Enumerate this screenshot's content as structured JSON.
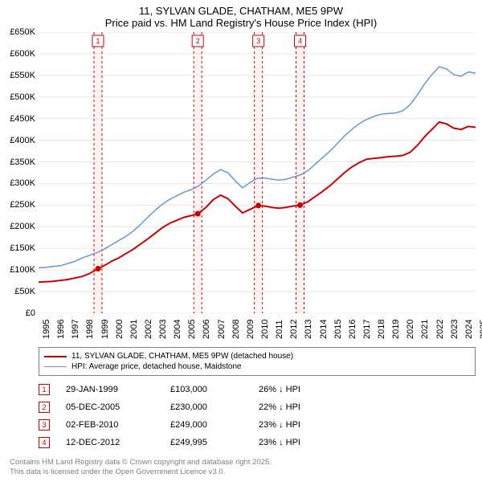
{
  "title": {
    "line1": "11, SYLVAN GLADE, CHATHAM, ME5 9PW",
    "line2": "Price paid vs. HM Land Registry's House Price Index (HPI)"
  },
  "chart": {
    "type": "line",
    "background_color": "#ffffff",
    "grid_color": "#e6e6e6",
    "x": {
      "min": 1995,
      "max": 2025,
      "ticks": [
        1995,
        1996,
        1997,
        1998,
        1999,
        2000,
        2001,
        2002,
        2003,
        2004,
        2005,
        2006,
        2007,
        2008,
        2009,
        2010,
        2011,
        2012,
        2013,
        2014,
        2015,
        2016,
        2017,
        2018,
        2019,
        2020,
        2021,
        2022,
        2023,
        2024,
        2025
      ]
    },
    "y": {
      "min": 0,
      "max": 650000,
      "ticks": [
        0,
        50000,
        100000,
        150000,
        200000,
        250000,
        300000,
        350000,
        400000,
        450000,
        500000,
        550000,
        600000,
        650000
      ],
      "tick_labels": [
        "£0",
        "£50K",
        "£100K",
        "£150K",
        "£200K",
        "£250K",
        "£300K",
        "£350K",
        "£400K",
        "£450K",
        "£500K",
        "£550K",
        "£600K",
        "£650K"
      ]
    },
    "series": [
      {
        "name": "price_paid",
        "color": "#cc0000",
        "line_width": 2,
        "points": [
          [
            1995.0,
            72000
          ],
          [
            1996.0,
            74000
          ],
          [
            1997.0,
            78000
          ],
          [
            1998.0,
            85000
          ],
          [
            1998.5,
            92000
          ],
          [
            1999.08,
            103000
          ],
          [
            1999.5,
            110000
          ],
          [
            2000.0,
            120000
          ],
          [
            2000.5,
            128000
          ],
          [
            2001.0,
            138000
          ],
          [
            2001.5,
            148000
          ],
          [
            2002.0,
            160000
          ],
          [
            2002.5,
            172000
          ],
          [
            2003.0,
            185000
          ],
          [
            2003.5,
            198000
          ],
          [
            2004.0,
            208000
          ],
          [
            2004.5,
            215000
          ],
          [
            2005.0,
            222000
          ],
          [
            2005.5,
            226000
          ],
          [
            2005.93,
            230000
          ],
          [
            2006.5,
            245000
          ],
          [
            2007.0,
            263000
          ],
          [
            2007.5,
            273000
          ],
          [
            2008.0,
            265000
          ],
          [
            2008.5,
            248000
          ],
          [
            2009.0,
            232000
          ],
          [
            2009.5,
            240000
          ],
          [
            2010.09,
            249000
          ],
          [
            2010.5,
            248000
          ],
          [
            2011.0,
            245000
          ],
          [
            2011.5,
            243000
          ],
          [
            2012.0,
            245000
          ],
          [
            2012.5,
            248000
          ],
          [
            2012.95,
            249995
          ],
          [
            2013.5,
            258000
          ],
          [
            2014.0,
            270000
          ],
          [
            2014.5,
            282000
          ],
          [
            2015.0,
            295000
          ],
          [
            2015.5,
            310000
          ],
          [
            2016.0,
            325000
          ],
          [
            2016.5,
            338000
          ],
          [
            2017.0,
            348000
          ],
          [
            2017.5,
            356000
          ],
          [
            2018.0,
            358000
          ],
          [
            2018.5,
            360000
          ],
          [
            2019.0,
            362000
          ],
          [
            2019.5,
            363000
          ],
          [
            2020.0,
            365000
          ],
          [
            2020.5,
            372000
          ],
          [
            2021.0,
            388000
          ],
          [
            2021.5,
            408000
          ],
          [
            2022.0,
            425000
          ],
          [
            2022.5,
            442000
          ],
          [
            2023.0,
            438000
          ],
          [
            2023.5,
            428000
          ],
          [
            2024.0,
            425000
          ],
          [
            2024.5,
            432000
          ],
          [
            2025.0,
            430000
          ]
        ]
      },
      {
        "name": "hpi",
        "color": "#6699cc",
        "line_width": 1.5,
        "points": [
          [
            1995.0,
            105000
          ],
          [
            1995.5,
            106000
          ],
          [
            1996.0,
            108000
          ],
          [
            1996.5,
            110000
          ],
          [
            1997.0,
            115000
          ],
          [
            1997.5,
            120000
          ],
          [
            1998.0,
            128000
          ],
          [
            1998.5,
            134000
          ],
          [
            1999.0,
            140000
          ],
          [
            1999.5,
            148000
          ],
          [
            2000.0,
            158000
          ],
          [
            2000.5,
            168000
          ],
          [
            2001.0,
            178000
          ],
          [
            2001.5,
            190000
          ],
          [
            2002.0,
            205000
          ],
          [
            2002.5,
            222000
          ],
          [
            2003.0,
            238000
          ],
          [
            2003.5,
            252000
          ],
          [
            2004.0,
            263000
          ],
          [
            2004.5,
            272000
          ],
          [
            2005.0,
            280000
          ],
          [
            2005.5,
            286000
          ],
          [
            2006.0,
            295000
          ],
          [
            2006.5,
            308000
          ],
          [
            2007.0,
            322000
          ],
          [
            2007.5,
            332000
          ],
          [
            2008.0,
            325000
          ],
          [
            2008.5,
            306000
          ],
          [
            2009.0,
            290000
          ],
          [
            2009.5,
            302000
          ],
          [
            2010.0,
            312000
          ],
          [
            2010.5,
            313000
          ],
          [
            2011.0,
            310000
          ],
          [
            2011.5,
            308000
          ],
          [
            2012.0,
            310000
          ],
          [
            2012.5,
            315000
          ],
          [
            2013.0,
            320000
          ],
          [
            2013.5,
            330000
          ],
          [
            2014.0,
            345000
          ],
          [
            2014.5,
            360000
          ],
          [
            2015.0,
            375000
          ],
          [
            2015.5,
            392000
          ],
          [
            2016.0,
            410000
          ],
          [
            2016.5,
            425000
          ],
          [
            2017.0,
            438000
          ],
          [
            2017.5,
            448000
          ],
          [
            2018.0,
            455000
          ],
          [
            2018.5,
            460000
          ],
          [
            2019.0,
            462000
          ],
          [
            2019.5,
            463000
          ],
          [
            2020.0,
            468000
          ],
          [
            2020.5,
            482000
          ],
          [
            2021.0,
            505000
          ],
          [
            2021.5,
            530000
          ],
          [
            2022.0,
            552000
          ],
          [
            2022.5,
            570000
          ],
          [
            2023.0,
            565000
          ],
          [
            2023.5,
            552000
          ],
          [
            2024.0,
            548000
          ],
          [
            2024.5,
            558000
          ],
          [
            2025.0,
            555000
          ]
        ]
      }
    ],
    "sale_markers": [
      {
        "n": "1",
        "year": 1999.08
      },
      {
        "n": "2",
        "year": 2005.93
      },
      {
        "n": "3",
        "year": 2010.09
      },
      {
        "n": "4",
        "year": 2012.95
      }
    ],
    "marker_band_color": "#fff3f3",
    "marker_border_color": "#cc0000",
    "marker_dash": "3,3"
  },
  "legend": {
    "items": [
      {
        "color": "#cc0000",
        "width": 2,
        "label": "11, SYLVAN GLADE, CHATHAM, ME5 9PW (detached house)"
      },
      {
        "color": "#6699cc",
        "width": 1.5,
        "label": "HPI: Average price, detached house, Maidstone"
      }
    ]
  },
  "sales": [
    {
      "n": "1",
      "date": "29-JAN-1999",
      "price": "£103,000",
      "pct": "26% ↓ HPI"
    },
    {
      "n": "2",
      "date": "05-DEC-2005",
      "price": "£230,000",
      "pct": "22% ↓ HPI"
    },
    {
      "n": "3",
      "date": "02-FEB-2010",
      "price": "£249,000",
      "pct": "23% ↓ HPI"
    },
    {
      "n": "4",
      "date": "12-DEC-2012",
      "price": "£249,995",
      "pct": "23% ↓ HPI"
    }
  ],
  "footer": {
    "line1": "Contains HM Land Registry data © Crown copyright and database right 2025.",
    "line2": "This data is licensed under the Open Government Licence v3.0."
  },
  "marker_box_border": "#cc0000"
}
